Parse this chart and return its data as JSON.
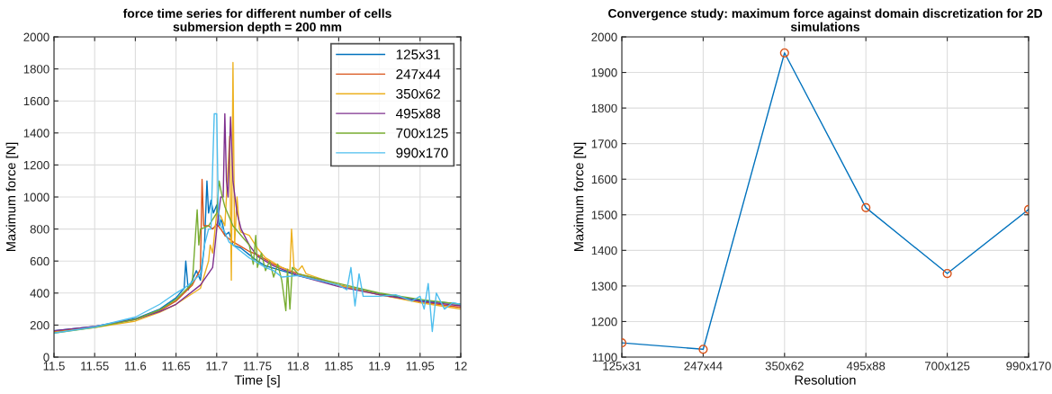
{
  "chart_data": [
    {
      "type": "line",
      "title": "force time series for different number of cells",
      "subtitle": "submersion depth = 200 mm",
      "xlabel": "Time [s]",
      "ylabel": "Maximum force [N]",
      "xlim": [
        11.5,
        12
      ],
      "xticks": [
        11.5,
        11.55,
        11.6,
        11.65,
        11.7,
        11.75,
        11.8,
        11.85,
        11.9,
        11.95,
        12
      ],
      "ylim": [
        0,
        2000
      ],
      "yticks": [
        0,
        200,
        400,
        600,
        800,
        1000,
        1200,
        1400,
        1600,
        1800,
        2000
      ],
      "grid": true,
      "legend": "top right",
      "series": [
        {
          "name": "125x31",
          "color": "#0072bd",
          "x": [
            11.5,
            11.55,
            11.6,
            11.63,
            11.65,
            11.66,
            11.662,
            11.665,
            11.67,
            11.675,
            11.68,
            11.685,
            11.688,
            11.69,
            11.693,
            11.696,
            11.7,
            11.703,
            11.706,
            11.71,
            11.715,
            11.72,
            11.73,
            11.74,
            11.75,
            11.76,
            11.78,
            11.8,
            11.85,
            11.9,
            11.95,
            12
          ],
          "values": [
            165,
            192,
            240,
            300,
            370,
            430,
            600,
            420,
            480,
            540,
            480,
            700,
            1100,
            900,
            980,
            900,
            950,
            820,
            860,
            760,
            780,
            700,
            680,
            640,
            600,
            570,
            540,
            510,
            450,
            395,
            355,
            330
          ]
        },
        {
          "name": "247x44",
          "color": "#d95319",
          "x": [
            11.5,
            11.55,
            11.6,
            11.63,
            11.65,
            11.66,
            11.67,
            11.675,
            11.68,
            11.682,
            11.684,
            11.69,
            11.695,
            11.7,
            11.705,
            11.71,
            11.72,
            11.73,
            11.74,
            11.75,
            11.76,
            11.77,
            11.78,
            11.8,
            11.85,
            11.9,
            11.95,
            12
          ],
          "values": [
            160,
            188,
            235,
            290,
            350,
            400,
            450,
            500,
            550,
            1110,
            820,
            820,
            800,
            830,
            800,
            760,
            720,
            690,
            660,
            640,
            610,
            580,
            560,
            520,
            450,
            390,
            345,
            310
          ]
        },
        {
          "name": "350x62",
          "color": "#edb120",
          "x": [
            11.5,
            11.55,
            11.6,
            11.63,
            11.65,
            11.68,
            11.69,
            11.692,
            11.695,
            11.7,
            11.705,
            11.71,
            11.712,
            11.716,
            11.718,
            11.72,
            11.722,
            11.725,
            11.728,
            11.73,
            11.74,
            11.75,
            11.76,
            11.78,
            11.79,
            11.792,
            11.795,
            11.8,
            11.805,
            11.81,
            11.85,
            11.9,
            11.95,
            12
          ],
          "values": [
            155,
            185,
            225,
            280,
            330,
            430,
            600,
            700,
            650,
            900,
            880,
            820,
            1000,
            1380,
            480,
            1840,
            700,
            1000,
            800,
            780,
            760,
            680,
            620,
            560,
            540,
            800,
            560,
            540,
            570,
            520,
            450,
            390,
            340,
            300
          ]
        },
        {
          "name": "495x88",
          "color": "#7e2f8e",
          "x": [
            11.5,
            11.55,
            11.6,
            11.63,
            11.65,
            11.68,
            11.695,
            11.698,
            11.7,
            11.705,
            11.708,
            11.71,
            11.712,
            11.714,
            11.717,
            11.72,
            11.725,
            11.73,
            11.74,
            11.75,
            11.77,
            11.8,
            11.85,
            11.9,
            11.95,
            12
          ],
          "values": [
            165,
            192,
            235,
            285,
            330,
            450,
            560,
            700,
            800,
            1000,
            1000,
            1520,
            1100,
            1000,
            1500,
            1100,
            900,
            800,
            700,
            630,
            570,
            510,
            440,
            390,
            350,
            320
          ]
        },
        {
          "name": "700x125",
          "color": "#77ac30",
          "x": [
            11.5,
            11.55,
            11.6,
            11.63,
            11.65,
            11.67,
            11.676,
            11.678,
            11.68,
            11.69,
            11.7,
            11.703,
            11.706,
            11.71,
            11.72,
            11.73,
            11.74,
            11.745,
            11.748,
            11.75,
            11.755,
            11.76,
            11.765,
            11.77,
            11.775,
            11.78,
            11.785,
            11.787,
            11.79,
            11.793,
            11.8,
            11.85,
            11.9,
            11.95,
            12
          ],
          "values": [
            150,
            185,
            235,
            295,
            360,
            460,
            920,
            700,
            800,
            820,
            900,
            1100,
            1020,
            940,
            820,
            760,
            700,
            580,
            760,
            560,
            650,
            540,
            600,
            500,
            580,
            480,
            290,
            550,
            300,
            560,
            520,
            460,
            400,
            360,
            330
          ]
        },
        {
          "name": "990x170",
          "color": "#4dbeee",
          "x": [
            11.5,
            11.55,
            11.6,
            11.63,
            11.65,
            11.66,
            11.67,
            11.68,
            11.685,
            11.69,
            11.693,
            11.695,
            11.697,
            11.7,
            11.702,
            11.705,
            11.71,
            11.715,
            11.72,
            11.73,
            11.74,
            11.75,
            11.76,
            11.77,
            11.78,
            11.8,
            11.85,
            11.86,
            11.865,
            11.87,
            11.875,
            11.88,
            11.9,
            11.92,
            11.94,
            11.95,
            11.955,
            11.96,
            11.965,
            11.97,
            11.98,
            11.99,
            12
          ],
          "values": [
            150,
            188,
            250,
            330,
            400,
            430,
            470,
            520,
            700,
            800,
            800,
            1180,
            1520,
            1520,
            920,
            820,
            780,
            720,
            700,
            660,
            620,
            590,
            560,
            540,
            500,
            510,
            450,
            420,
            560,
            320,
            520,
            380,
            380,
            390,
            350,
            380,
            300,
            460,
            160,
            400,
            300,
            340,
            330
          ]
        }
      ]
    },
    {
      "type": "line",
      "title": "Convergence study: maximum force against domain discretization for 2D simulations",
      "xlabel": "Resolution",
      "ylabel": "Maximum force [N]",
      "categories": [
        "125x31",
        "247x44",
        "350x62",
        "495x88",
        "700x125",
        "990x170"
      ],
      "ylim": [
        1100,
        2000
      ],
      "yticks": [
        1100,
        1200,
        1300,
        1400,
        1500,
        1600,
        1700,
        1800,
        1900,
        2000
      ],
      "grid": true,
      "series": [
        {
          "type": "line",
          "color": "#0072bd",
          "values": [
            1140,
            1122,
            1955,
            1520,
            1335,
            1515
          ]
        },
        {
          "type": "scatter",
          "marker": "circle",
          "color": "#d95319",
          "values": [
            1140,
            1122,
            1955,
            1520,
            1335,
            1515
          ]
        }
      ]
    }
  ]
}
